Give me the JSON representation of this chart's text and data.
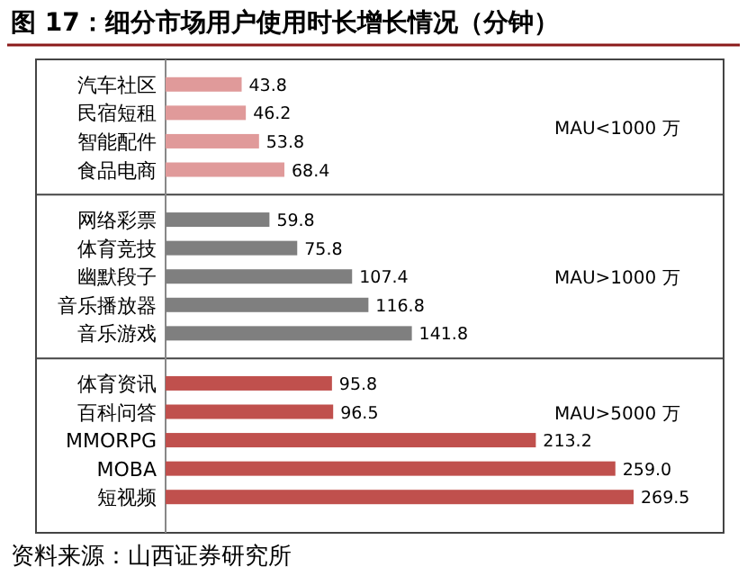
{
  "chart_data": {
    "type": "bar",
    "orientation": "horizontal",
    "title": "图 17：细分市场用户使用时长增长情况（分钟）",
    "categories": [
      "汽车社区",
      "民宿短租",
      "智能配件",
      "食品电商",
      "网络彩票",
      "体育竞技",
      "幽默段子",
      "音乐播放器",
      "音乐游戏",
      "体育资讯",
      "百科问答",
      "MMORPG",
      "MOBA",
      "短视频"
    ],
    "series": [
      {
        "color": "#e09a9a",
        "values": [
          43.8,
          46.2,
          53.8,
          68.4,
          null,
          null,
          null,
          null,
          null,
          null,
          null,
          null,
          null,
          null
        ]
      },
      {
        "color": "#7f7f7f",
        "values": [
          null,
          null,
          null,
          null,
          59.8,
          75.8,
          107.4,
          116.8,
          141.8,
          null,
          null,
          null,
          null,
          null
        ]
      },
      {
        "color": "#c0504d",
        "values": [
          null,
          null,
          null,
          null,
          null,
          null,
          null,
          null,
          null,
          95.8,
          96.5,
          213.2,
          259.0,
          269.5
        ],
        "value_labels": [
          null,
          null,
          null,
          null,
          null,
          null,
          null,
          null,
          null,
          "95.8",
          "96.5",
          "213.2",
          "259.0",
          "269.5"
        ]
      }
    ],
    "data_labels": true,
    "annotations": [
      "MAU<1000 万",
      "MAU>1000 万",
      "MAU>5000 万",
      "资料来源：山西证券研究所"
    ]
  }
}
